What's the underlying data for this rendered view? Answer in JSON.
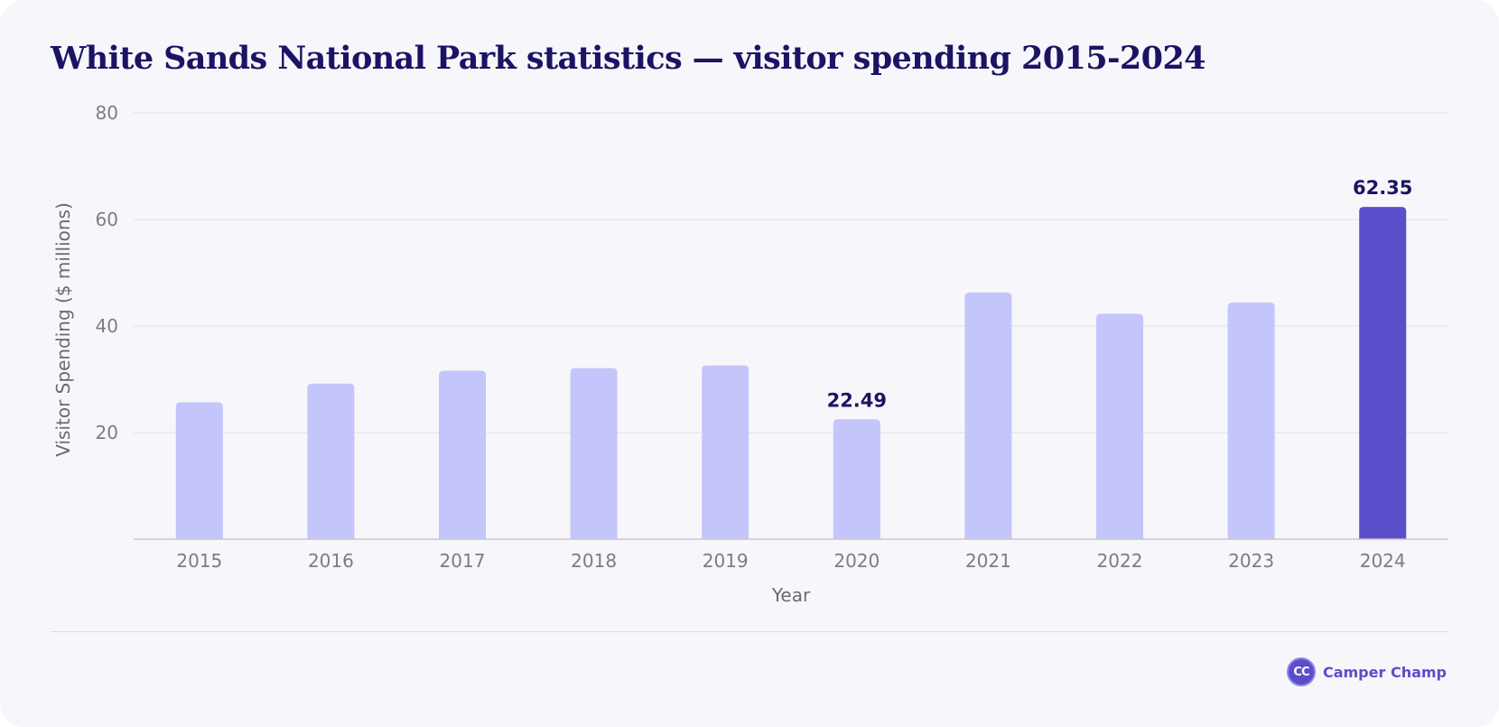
{
  "chart_data": {
    "type": "bar",
    "title": "White Sands National Park statistics — visitor spending 2015-2024",
    "xlabel": "Year",
    "ylabel": "Visitor Spending ($ millions)",
    "ylim": [
      0,
      80
    ],
    "yticks": [
      20,
      40,
      60,
      80
    ],
    "grid": true,
    "categories": [
      "2015",
      "2016",
      "2017",
      "2018",
      "2019",
      "2020",
      "2021",
      "2022",
      "2023",
      "2024"
    ],
    "values": [
      25.7,
      29.2,
      31.6,
      32.1,
      32.6,
      22.49,
      46.3,
      42.3,
      44.4,
      62.35
    ],
    "data_labels": [
      "",
      "",
      "",
      "",
      "",
      "22.49",
      "",
      "",
      "",
      "62.35"
    ],
    "colors": {
      "bar": "#c4c6fb",
      "highlight": "#5b4ecb",
      "highlight_index": 9,
      "grid": "#e2e0e6",
      "axis": "#c9c7cf"
    }
  },
  "brand": {
    "logo_text": "CC",
    "name": "Camper Champ"
  }
}
